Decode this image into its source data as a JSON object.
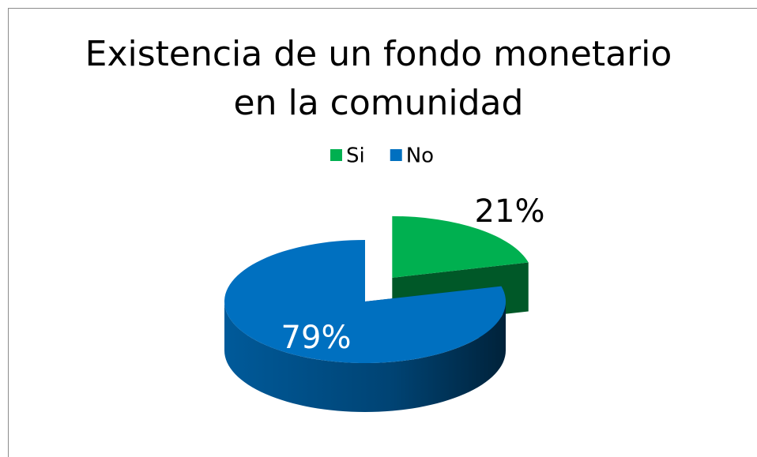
{
  "chart_data": {
    "type": "pie3d",
    "title": "Existencia de un fondo monetario en la comunidad",
    "categories": [
      "Si",
      "No"
    ],
    "values": [
      21,
      79
    ],
    "value_labels": [
      "21%",
      "79%"
    ],
    "colors": [
      "#00b050",
      "#0070c0"
    ],
    "legend": "top"
  }
}
